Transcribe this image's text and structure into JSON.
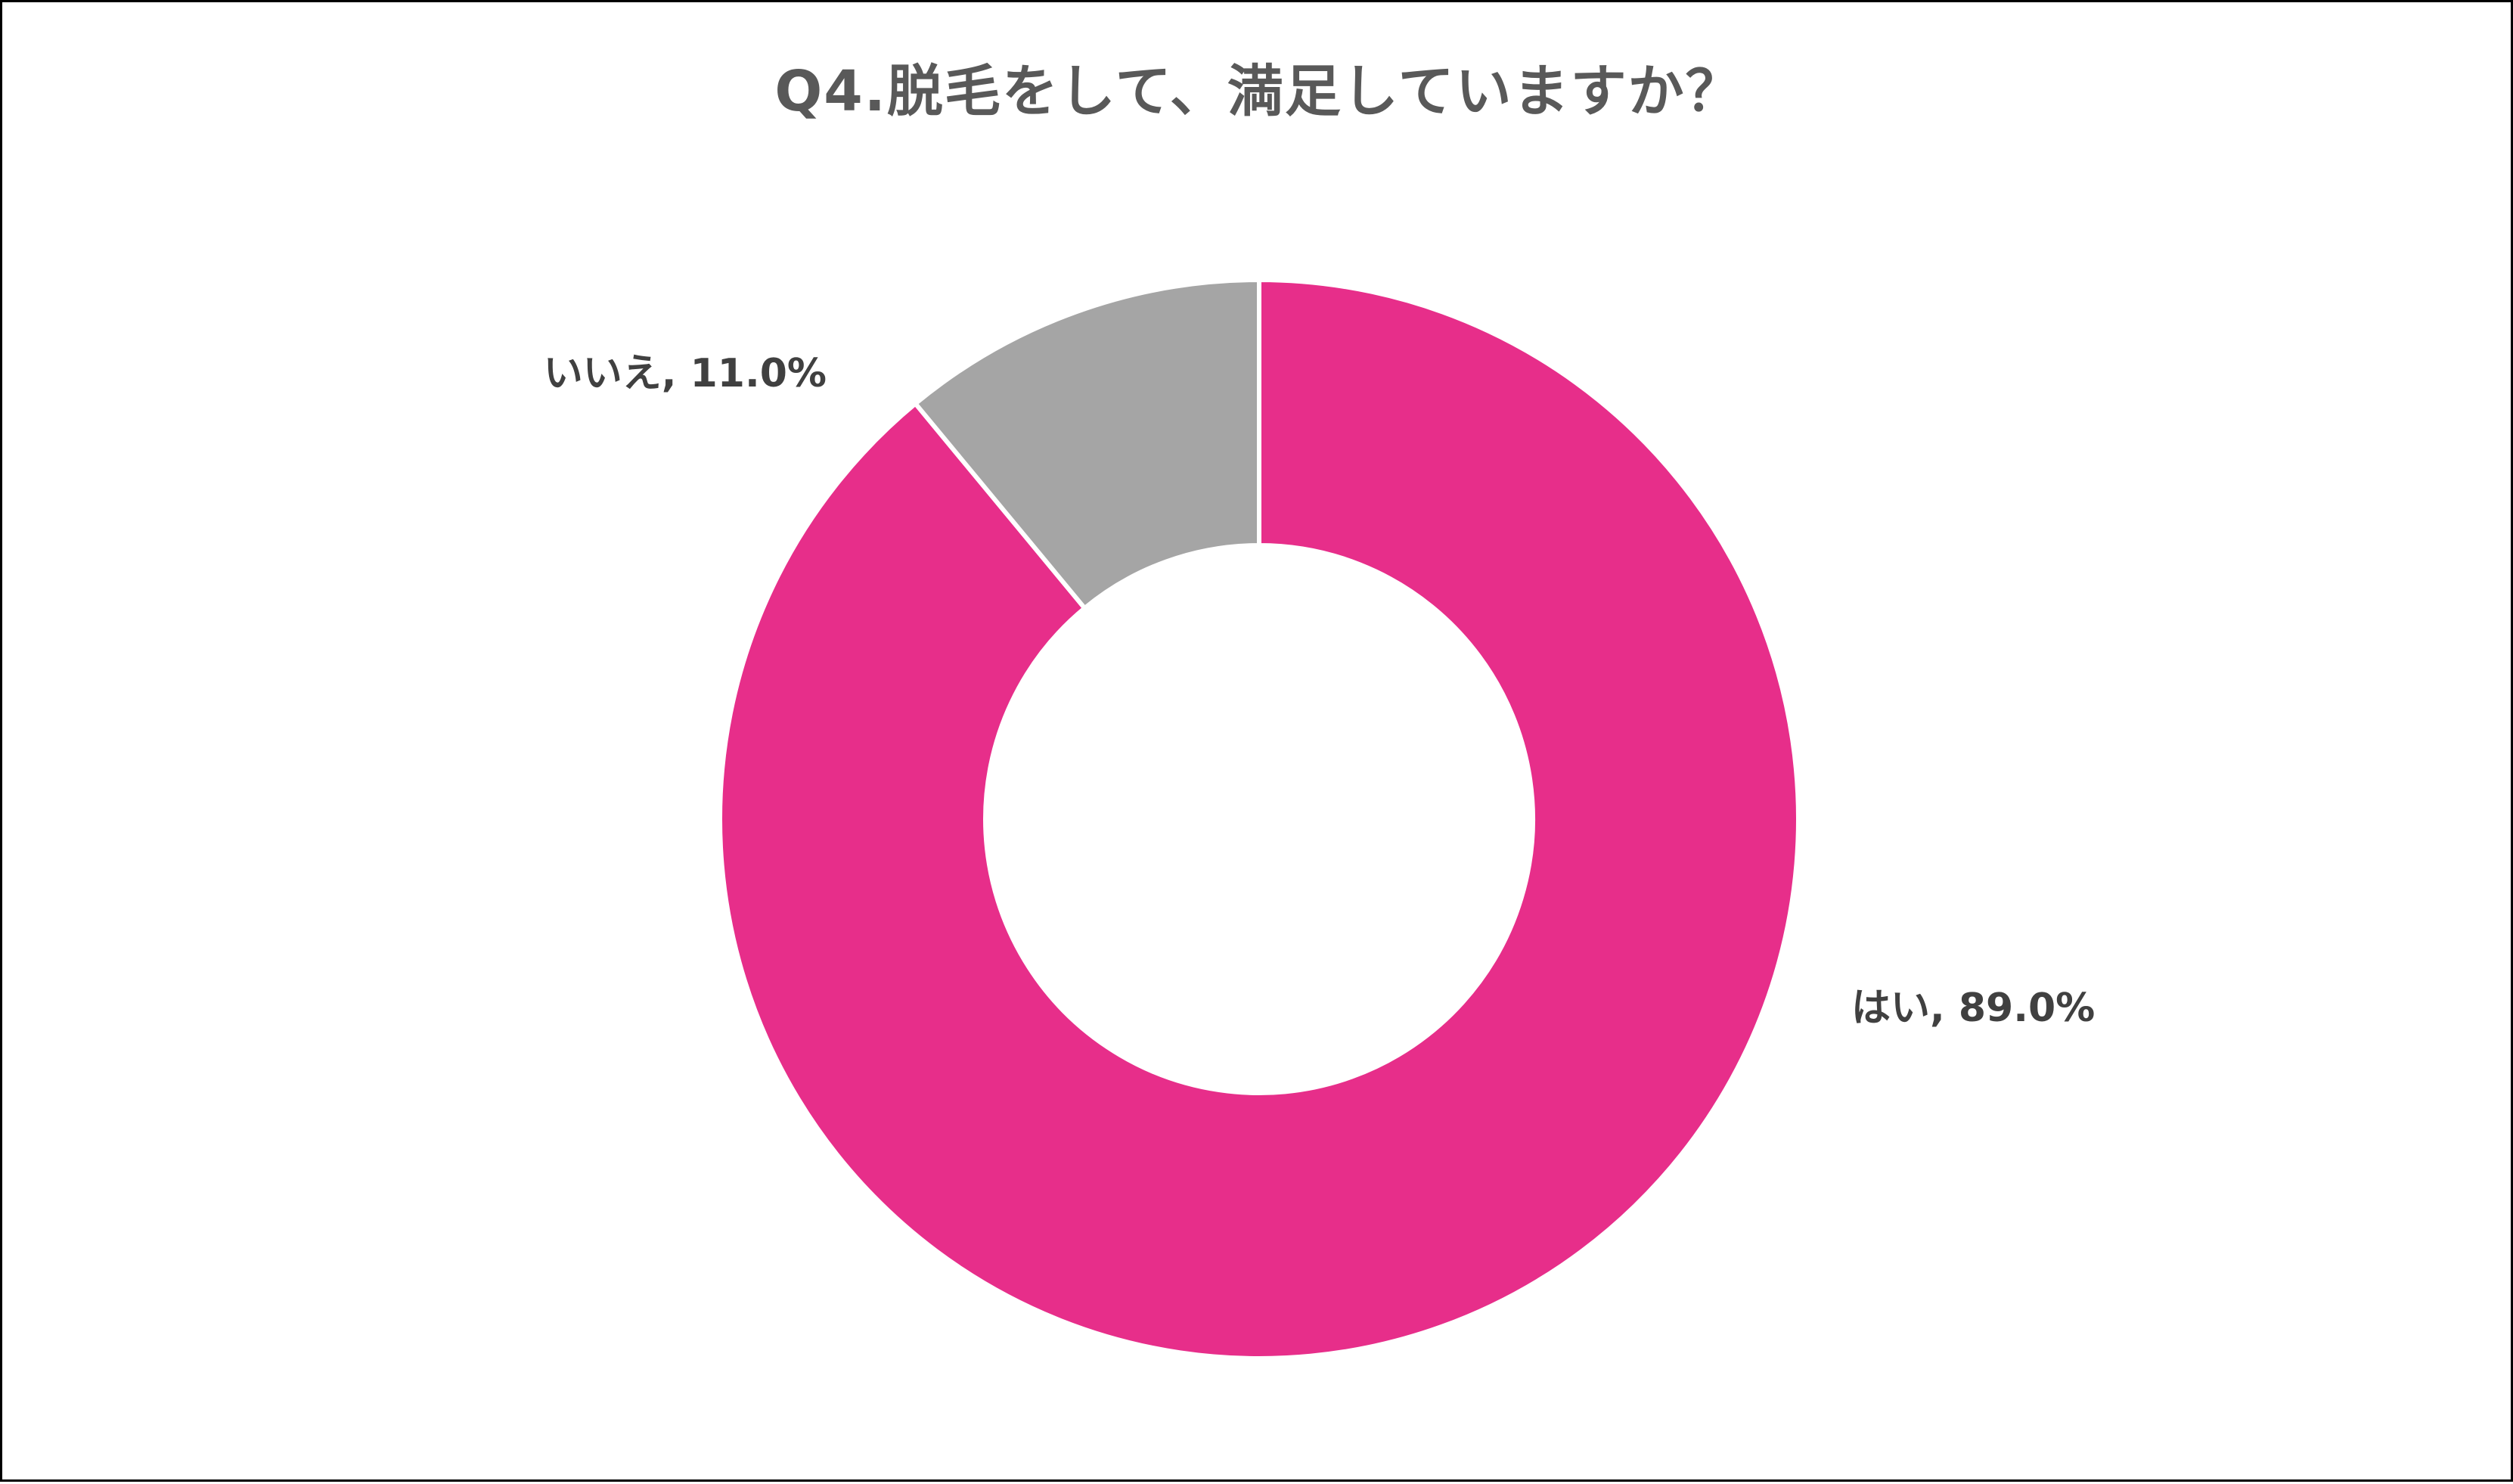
{
  "chart_data": {
    "type": "pie",
    "title": "Q4.脱毛をして、満足していますか？",
    "categories": [
      "はい",
      "いいえ"
    ],
    "values": [
      89.0,
      11.0
    ],
    "unit": "%",
    "labels": [
      "はい, 89.0%",
      "いいえ, 11.0%"
    ],
    "colors": [
      "#E72E8A",
      "#A5A5A5"
    ],
    "hole": true,
    "legend": "none"
  }
}
